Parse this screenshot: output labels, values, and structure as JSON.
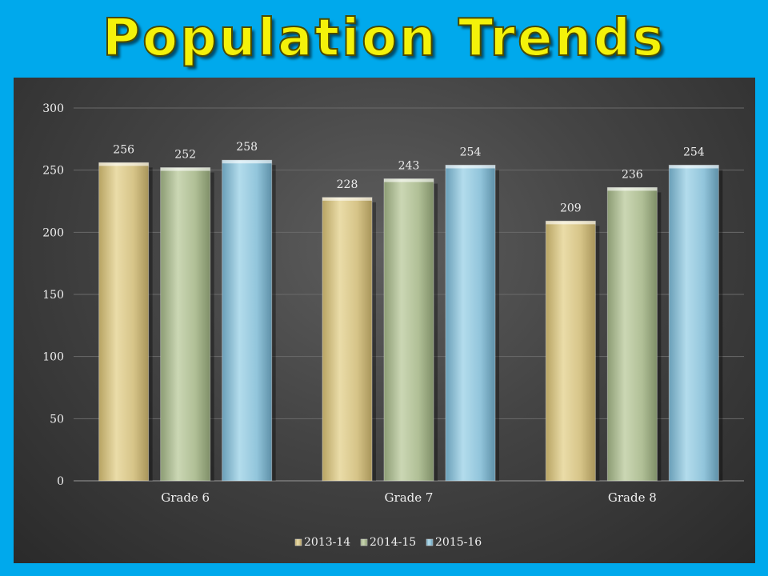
{
  "chart_data": {
    "type": "bar",
    "title": "Population Trends",
    "categories": [
      "Grade 6",
      "Grade 7",
      "Grade 8"
    ],
    "series": [
      {
        "name": "2013-14",
        "values": [
          256,
          228,
          209
        ],
        "color": "#d9c98a"
      },
      {
        "name": "2014-15",
        "values": [
          252,
          243,
          236
        ],
        "color": "#b4c39a"
      },
      {
        "name": "2015-16",
        "values": [
          258,
          254,
          254
        ],
        "color": "#8fc2d8"
      }
    ],
    "ylim": [
      0,
      300
    ],
    "yticks": [
      0,
      50,
      100,
      150,
      200,
      250,
      300
    ],
    "xlabel": "",
    "ylabel": "",
    "grid": true,
    "legend": "bottom",
    "data_labels": true
  }
}
